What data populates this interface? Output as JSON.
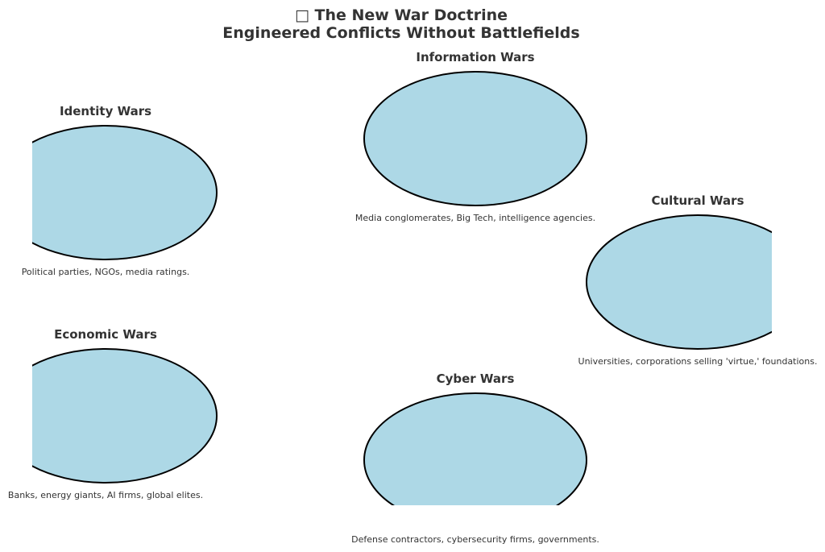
{
  "title": {
    "line1": "□ The New War Doctrine",
    "line2": "Engineered Conflicts Without Battlefields"
  },
  "fill_color": "#add8e6",
  "stroke_color": "#000000",
  "nodes": [
    {
      "label": "Information Wars",
      "description": "Media conglomerates, Big Tech, intelligence agencies."
    },
    {
      "label": "Identity Wars",
      "description": "Political parties, NGOs, media ratings."
    },
    {
      "label": "Cultural Wars",
      "description": "Universities, corporations selling 'virtue,' foundations."
    },
    {
      "label": "Economic Wars",
      "description": "Banks, energy giants, AI firms, global elites."
    },
    {
      "label": "Cyber Wars",
      "description": "Defense contractors, cybersecurity firms, governments."
    }
  ]
}
